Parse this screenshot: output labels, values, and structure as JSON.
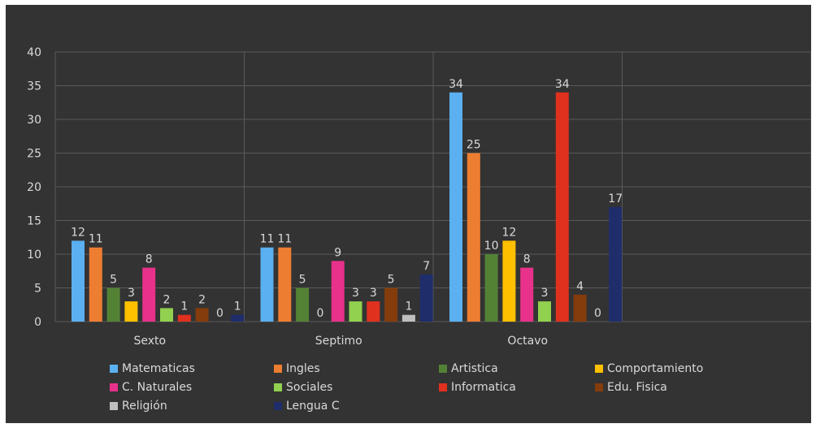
{
  "chart_data": {
    "type": "bar",
    "categories": [
      "Sexto",
      "Septimo",
      "Octavo",
      ""
    ],
    "ylim": [
      0,
      40
    ],
    "yticks": [
      0,
      5,
      10,
      15,
      20,
      25,
      30,
      35,
      40
    ],
    "grid": true,
    "legend_position": "bottom",
    "series": [
      {
        "name": "Matematicas",
        "color": "#5ab0f0",
        "values": [
          12,
          11,
          34,
          null
        ],
        "labels": [
          "12",
          "11",
          "34",
          ""
        ]
      },
      {
        "name": "Ingles",
        "color": "#ed7d31",
        "values": [
          11,
          11,
          25,
          null
        ],
        "labels": [
          "11",
          "11",
          "25",
          ""
        ]
      },
      {
        "name": "Artistica",
        "color": "#548235",
        "values": [
          5,
          5,
          10,
          null
        ],
        "labels": [
          "5",
          "5",
          "10",
          ""
        ]
      },
      {
        "name": "Comportamiento",
        "color": "#ffc000",
        "values": [
          3,
          0,
          12,
          null
        ],
        "labels": [
          "3",
          "0",
          "12",
          ""
        ]
      },
      {
        "name": "C. Naturales",
        "color": "#e8318a",
        "values": [
          8,
          9,
          8,
          null
        ],
        "labels": [
          "8",
          "9",
          "8",
          ""
        ]
      },
      {
        "name": "Sociales",
        "color": "#92d050",
        "values": [
          2,
          3,
          3,
          null
        ],
        "labels": [
          "2",
          "3",
          "3",
          ""
        ]
      },
      {
        "name": "Informatica",
        "color": "#e0301e",
        "values": [
          1,
          3,
          34,
          null
        ],
        "labels": [
          "1",
          "3",
          "34",
          ""
        ]
      },
      {
        "name": "Edu. Fisica",
        "color": "#843c0c",
        "values": [
          2,
          5,
          4,
          null
        ],
        "labels": [
          "2",
          "5",
          "4",
          ""
        ]
      },
      {
        "name": "Religión",
        "color": "#bfbfbf",
        "values": [
          0,
          1,
          0,
          null
        ],
        "labels": [
          "0",
          "1",
          "0",
          ""
        ]
      },
      {
        "name": "Lengua C",
        "color": "#1f2d6b",
        "values": [
          1,
          7,
          17,
          null
        ],
        "labels": [
          "1",
          "7",
          "17",
          ""
        ]
      }
    ]
  }
}
